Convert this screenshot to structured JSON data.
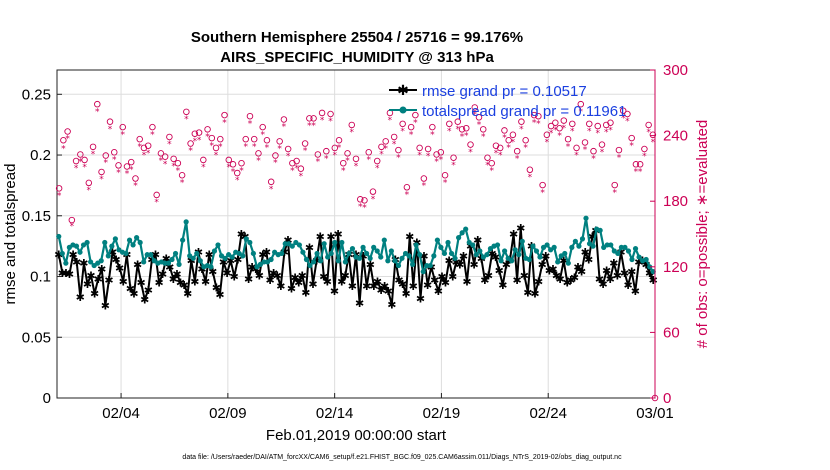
{
  "chart_data": {
    "type": "line",
    "title_line1": "Southern Hemisphere 25504 / 25716 = 99.176%",
    "title_line2": "AIRS_SPECIFIC_HUMIDITY @ 313 hPa",
    "xlabel": "Feb.01,2019 00:00:00 start",
    "ylabel_left": "rmse and totalspread",
    "ylabel_right": "# of obs: o=possible; ∗=evaluated",
    "footnote": "data file: /Users/raeder/DAI/ATM_forcXX/CAM6_setup/f.e21.FHIST_BGC.f09_025.CAM6assim.011/Diags_NTrS_2019-02/obs_diag_output.nc",
    "xlim": [
      1,
      29
    ],
    "x_ticks": [
      {
        "value": 4,
        "label": "02/04"
      },
      {
        "value": 9,
        "label": "02/09"
      },
      {
        "value": 14,
        "label": "02/14"
      },
      {
        "value": 19,
        "label": "02/19"
      },
      {
        "value": 24,
        "label": "02/24"
      },
      {
        "value": 29,
        "label": "03/01"
      }
    ],
    "y_left_lim": [
      0,
      0.27
    ],
    "y_left_ticks": [
      "0",
      "0.05",
      "0.1",
      "0.15",
      "0.2",
      "0.25"
    ],
    "y_right_lim": [
      0,
      300
    ],
    "y_right_ticks": [
      "0",
      "60",
      "120",
      "180",
      "240",
      "300"
    ],
    "colors": {
      "rmse": "#000000",
      "spread": "#008080",
      "obs": "#cc0055",
      "legend_text": "#1a3fe0"
    },
    "series": [
      {
        "name": "rmse grand pr = 0.10517",
        "key": "rmse",
        "values": [
          0.118,
          0.103,
          0.103,
          0.102,
          0.118,
          0.112,
          0.083,
          0.111,
          0.094,
          0.101,
          0.086,
          0.098,
          0.106,
          0.076,
          0.097,
          0.12,
          0.114,
          0.107,
          0.096,
          0.118,
          0.09,
          0.086,
          0.11,
          0.095,
          0.081,
          0.089,
          0.114,
          0.118,
          0.095,
          0.102,
          0.115,
          0.108,
          0.098,
          0.102,
          0.095,
          0.093,
          0.086,
          0.113,
          0.096,
          0.12,
          0.106,
          0.096,
          0.118,
          0.104,
          0.091,
          0.085,
          0.112,
          0.103,
          0.113,
          0.1,
          0.114,
          0.135,
          0.133,
          0.098,
          0.108,
          0.106,
          0.101,
          0.118,
          0.12,
          0.097,
          0.103,
          0.101,
          0.092,
          0.12,
          0.13,
          0.09,
          0.099,
          0.095,
          0.101,
          0.087,
          0.124,
          0.094,
          0.113,
          0.133,
          0.1,
          0.096,
          0.133,
          0.088,
          0.135,
          0.096,
          0.101,
          0.118,
          0.092,
          0.118,
          0.078,
          0.117,
          0.092,
          0.11,
          0.092,
          0.096,
          0.089,
          0.092,
          0.088,
          0.077,
          0.114,
          0.097,
          0.094,
          0.086,
          0.133,
          0.092,
          0.128,
          0.082,
          0.117,
          0.093,
          0.108,
          0.097,
          0.088,
          0.1,
          0.095,
          0.113,
          0.1,
          0.112,
          0.11,
          0.117,
          0.096,
          0.125,
          0.11,
          0.13,
          0.115,
          0.097,
          0.101,
          0.119,
          0.116,
          0.105,
          0.093,
          0.11,
          0.114,
          0.135,
          0.097,
          0.14,
          0.101,
          0.087,
          0.125,
          0.086,
          0.096,
          0.11,
          0.117,
          0.105,
          0.106,
          0.101,
          0.098,
          0.113,
          0.095,
          0.097,
          0.099,
          0.108,
          0.104,
          0.12,
          0.114,
          0.133,
          0.138,
          0.098,
          0.094,
          0.105,
          0.098,
          0.111,
          0.101,
          0.12,
          0.103,
          0.093,
          0.104,
          0.088,
          0.112,
          0.113,
          0.11,
          0.103,
          0.097
        ]
      },
      {
        "name": "totalspread grand pr = 0.11961",
        "key": "spread",
        "values": [
          0.133,
          0.119,
          0.111,
          0.124,
          0.126,
          0.125,
          0.12,
          0.126,
          0.128,
          0.112,
          0.109,
          0.111,
          0.113,
          0.128,
          0.117,
          0.125,
          0.131,
          0.122,
          0.12,
          0.119,
          0.13,
          0.126,
          0.132,
          0.128,
          0.112,
          0.118,
          0.118,
          0.113,
          0.111,
          0.112,
          0.111,
          0.111,
          0.114,
          0.119,
          0.11,
          0.13,
          0.145,
          0.117,
          0.115,
          0.119,
          0.113,
          0.108,
          0.109,
          0.108,
          0.121,
          0.126,
          0.117,
          0.115,
          0.118,
          0.116,
          0.12,
          0.119,
          0.117,
          0.131,
          0.128,
          0.119,
          0.108,
          0.11,
          0.112,
          0.112,
          0.114,
          0.12,
          0.118,
          0.119,
          0.127,
          0.127,
          0.125,
          0.128,
          0.126,
          0.12,
          0.114,
          0.109,
          0.112,
          0.119,
          0.113,
          0.127,
          0.116,
          0.119,
          0.128,
          0.113,
          0.128,
          0.112,
          0.119,
          0.123,
          0.116,
          0.115,
          0.124,
          0.119,
          0.115,
          0.124,
          0.121,
          0.116,
          0.13,
          0.113,
          0.121,
          0.113,
          0.109,
          0.115,
          0.119,
          0.117,
          0.11,
          0.126,
          0.118,
          0.104,
          0.109,
          0.109,
          0.117,
          0.13,
          0.124,
          0.119,
          0.128,
          0.119,
          0.115,
          0.132,
          0.136,
          0.139,
          0.128,
          0.126,
          0.118,
          0.121,
          0.116,
          0.118,
          0.123,
          0.125,
          0.126,
          0.113,
          0.121,
          0.115,
          0.113,
          0.122,
          0.118,
          0.129,
          0.115,
          0.114,
          0.125,
          0.121,
          0.116,
          0.124,
          0.126,
          0.122,
          0.124,
          0.112,
          0.117,
          0.119,
          0.111,
          0.124,
          0.129,
          0.125,
          0.131,
          0.148,
          0.127,
          0.125,
          0.139,
          0.138,
          0.124,
          0.126,
          0.126,
          0.121,
          0.119,
          0.124,
          0.124,
          0.121,
          0.114,
          0.123,
          0.116,
          0.113,
          0.114,
          0.108,
          0.104
        ]
      }
    ],
    "obs_series": [
      {
        "name": "possible",
        "marker": "o",
        "values": [
          189,
          233,
          241,
          160,
          214,
          220,
          215,
          194,
          227,
          266,
          204,
          219,
          250,
          222,
          210,
          245,
          209,
          213,
          198,
          234,
          226,
          228,
          245,
          183,
          221,
          218,
          236,
          216,
          212,
          201,
          259,
          230,
          239,
          240,
          215,
          243,
          235,
          226,
          234,
          256,
          215,
          211,
          203,
          212,
          234,
          255,
          234,
          221,
          245,
          233,
          195,
          219,
          232,
          252,
          225,
          212,
          214,
          207,
          230,
          253,
          253,
          220,
          258,
          223,
          257,
          226,
          233,
          212,
          221,
          247,
          216,
          179,
          178,
          222,
          186,
          214,
          227,
          232,
          258,
          236,
          224,
          248,
          190,
          245,
          256,
          226,
          198,
          225,
          245,
          220,
          222,
          201,
          248,
          217,
          250,
          243,
          244,
          229,
          263,
          254,
          243,
          217,
          212,
          228,
          226,
          242,
          233,
          238,
          223,
          250,
          233,
          206,
          256,
          255,
          192,
          238,
          246,
          249,
          244,
          251,
          234,
          248,
          226,
          266,
          231,
          248,
          223,
          246,
          229,
          247,
          249,
          192,
          224,
          260,
          257,
          235,
          211,
          211,
          225,
          247,
          238
        ]
      },
      {
        "name": "evaluated",
        "marker": "*",
        "values": [
          187,
          230,
          239,
          159,
          212,
          218,
          213,
          192,
          225,
          264,
          202,
          217,
          248,
          220,
          208,
          243,
          207,
          211,
          196,
          232,
          224,
          226,
          243,
          181,
          219,
          216,
          234,
          214,
          210,
          199,
          257,
          228,
          237,
          238,
          213,
          241,
          233,
          224,
          232,
          254,
          213,
          209,
          201,
          210,
          232,
          253,
          232,
          219,
          243,
          231,
          193,
          217,
          230,
          250,
          223,
          210,
          212,
          205,
          228,
          251,
          251,
          218,
          256,
          221,
          255,
          224,
          231,
          210,
          219,
          245,
          214,
          177,
          176,
          220,
          184,
          212,
          225,
          230,
          256,
          234,
          222,
          246,
          188,
          243,
          254,
          224,
          196,
          223,
          243,
          218,
          220,
          199,
          246,
          215,
          248,
          241,
          242,
          227,
          261,
          252,
          241,
          215,
          210,
          226,
          224,
          240,
          231,
          236,
          221,
          248,
          231,
          204,
          254,
          253,
          190,
          236,
          244,
          247,
          242,
          249,
          232,
          246,
          224,
          264,
          229,
          246,
          221,
          244,
          227,
          245,
          247,
          190,
          222,
          258,
          255,
          233,
          209,
          209,
          223,
          245,
          236
        ]
      }
    ]
  }
}
